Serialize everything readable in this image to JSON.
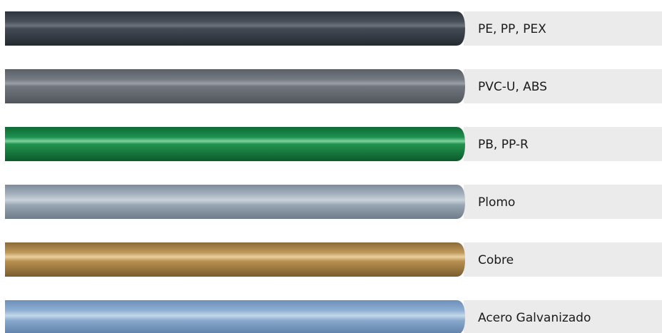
{
  "items": [
    {
      "label": "PE, PP, PEX"
    },
    {
      "label": "PVC-U, ABS"
    },
    {
      "label": "PB, PP-R"
    },
    {
      "label": "Plomo"
    },
    {
      "label": "Cobre"
    },
    {
      "label": "Acero Galvanizado"
    }
  ]
}
